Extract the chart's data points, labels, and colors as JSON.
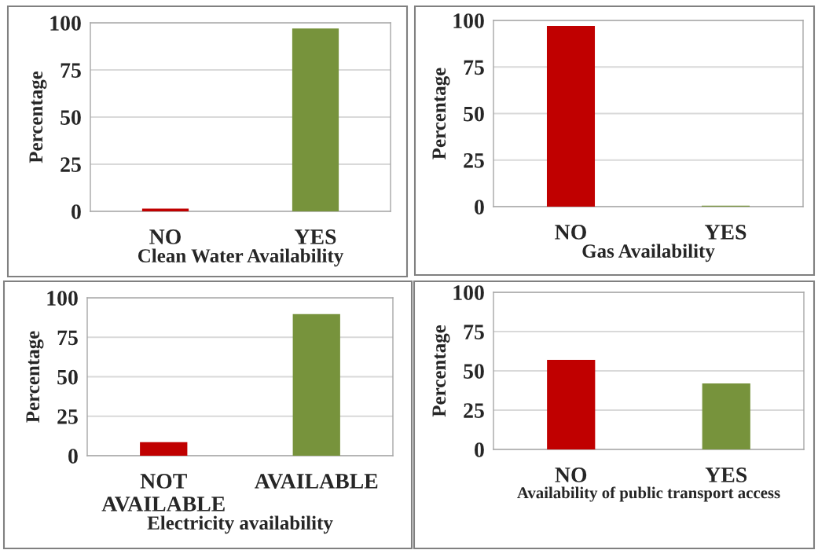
{
  "chart_data": [
    {
      "type": "bar",
      "xlabel": "Clean Water Availability",
      "ylabel": "Percentage",
      "categories": [
        "NO",
        "YES"
      ],
      "values": [
        1.5,
        97
      ],
      "colors": [
        "#c00000",
        "#77933c"
      ],
      "ylim": [
        0,
        100
      ],
      "yticks": [
        0,
        25,
        50,
        75,
        100
      ],
      "grid": "y"
    },
    {
      "type": "bar",
      "xlabel": "Gas Availability",
      "ylabel": "Percentage",
      "categories": [
        "NO",
        "YES"
      ],
      "values": [
        97,
        0.5
      ],
      "colors": [
        "#c00000",
        "#77933c"
      ],
      "ylim": [
        0,
        100
      ],
      "yticks": [
        0,
        25,
        50,
        75,
        100
      ],
      "grid": "y"
    },
    {
      "type": "bar",
      "xlabel": "Electricity availability",
      "ylabel": "Percentage",
      "categories": [
        "NOT AVAILABLE",
        "AVAILABLE"
      ],
      "values": [
        8.6,
        89.7
      ],
      "colors": [
        "#c00000",
        "#77933c"
      ],
      "ylim": [
        0,
        100
      ],
      "yticks": [
        0,
        25,
        50,
        75,
        100
      ],
      "grid": "y"
    },
    {
      "type": "bar",
      "xlabel": "Availability of public transport access",
      "ylabel": "Percentage",
      "categories": [
        "NO",
        "YES"
      ],
      "values": [
        57,
        42
      ],
      "colors": [
        "#c00000",
        "#77933c"
      ],
      "ylim": [
        0,
        100
      ],
      "yticks": [
        0,
        25,
        50,
        75,
        100
      ],
      "grid": "y"
    }
  ]
}
